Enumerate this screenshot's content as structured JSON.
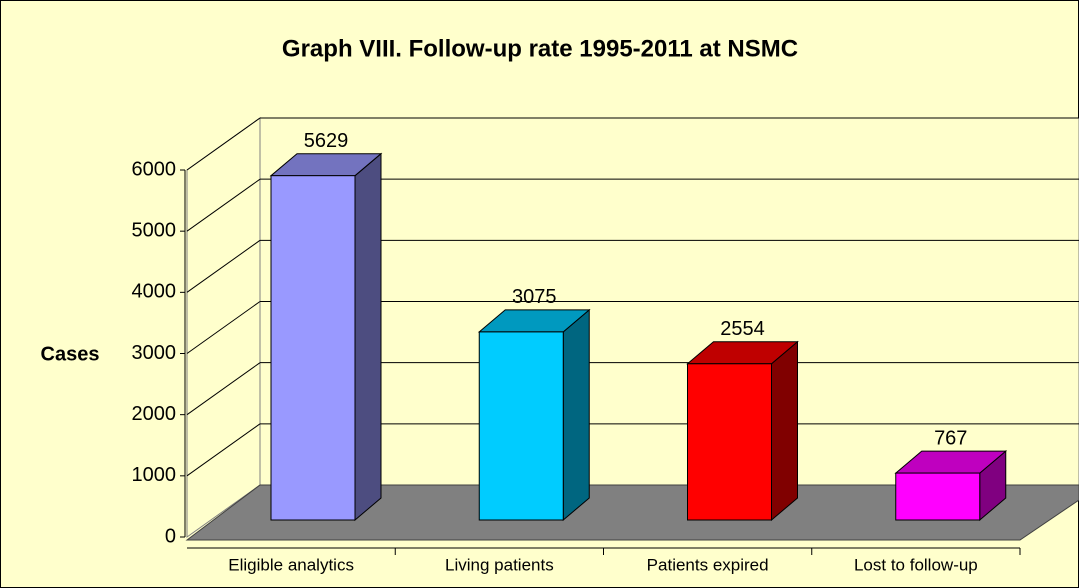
{
  "chart_data": {
    "type": "bar3d",
    "title": "Graph VIII. Follow-up rate 1995-2011 at NSMC",
    "y_label": "Cases",
    "categories": [
      "Eligible analytics",
      "Living patients",
      "Patients expired",
      "Lost to follow-up"
    ],
    "values": [
      5629,
      3075,
      2554,
      767
    ],
    "colors": [
      "#9999ff",
      "#00ccff",
      "#ff0000",
      "#ff00ff"
    ],
    "ylim": [
      0,
      6000
    ],
    "yticks": [
      0,
      1000,
      2000,
      3000,
      4000,
      5000,
      6000
    ],
    "grid": true
  }
}
